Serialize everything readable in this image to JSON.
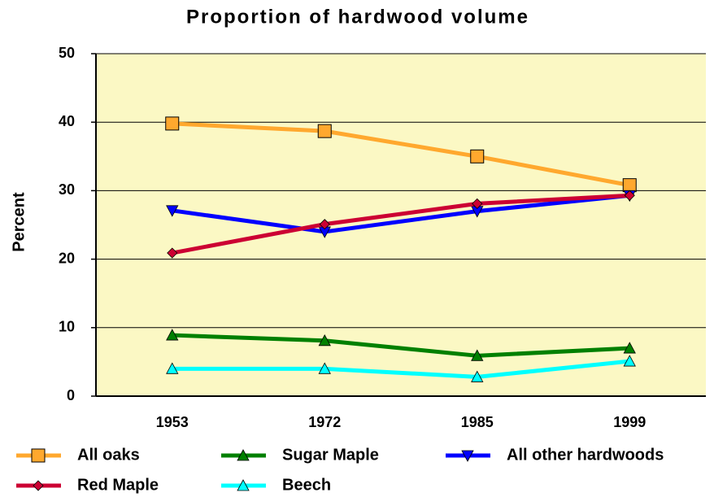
{
  "chart_data": {
    "type": "line",
    "title": "Proportion of hardwood volume",
    "y_label": "Percent",
    "categories": [
      "1953",
      "1972",
      "1985",
      "1999"
    ],
    "ylim": [
      0,
      50
    ],
    "yticks": [
      0,
      10,
      20,
      30,
      40,
      50
    ],
    "grid": true,
    "legend": "bottom",
    "series": [
      {
        "name": "All oaks",
        "color": "#ffa82e",
        "marker": "square",
        "values": [
          39.8,
          38.7,
          35.0,
          30.8
        ]
      },
      {
        "name": "Sugar Maple",
        "color": "#008000",
        "marker": "triangle",
        "values": [
          8.9,
          8.1,
          5.9,
          7.0
        ]
      },
      {
        "name": "All other hardwoods",
        "color": "#0000ff",
        "marker": "triangle-down",
        "values": [
          27.1,
          24.0,
          27.0,
          29.3
        ]
      },
      {
        "name": "Red Maple",
        "color": "#cc0033",
        "marker": "diamond",
        "values": [
          20.9,
          25.1,
          28.1,
          29.3
        ]
      },
      {
        "name": "Beech",
        "color": "#00ffff",
        "marker": "triangle",
        "values": [
          4.0,
          4.0,
          2.8,
          5.1
        ]
      }
    ]
  }
}
